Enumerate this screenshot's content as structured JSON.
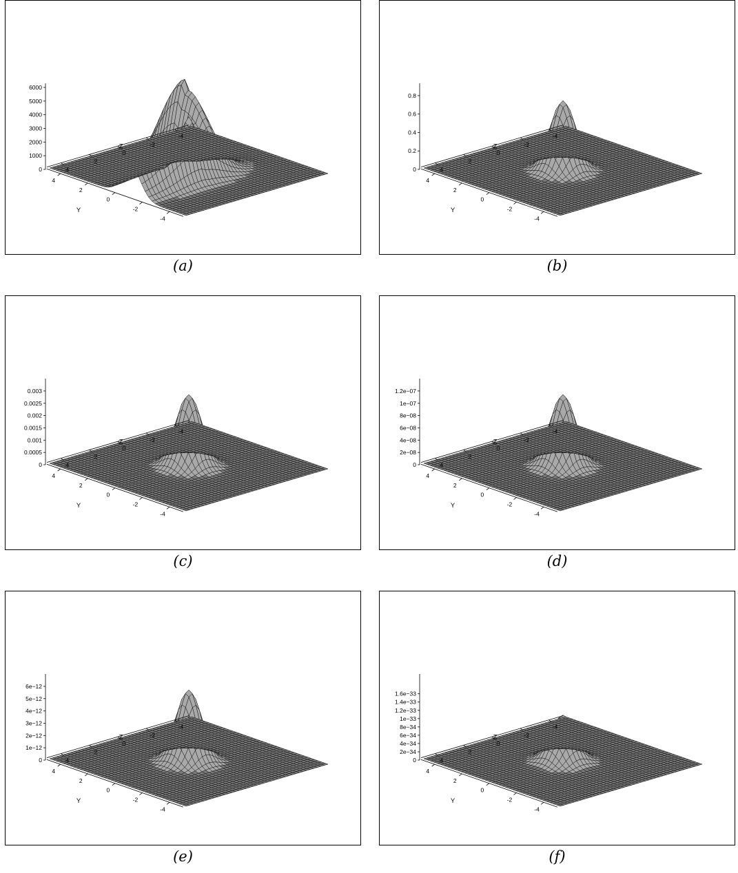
{
  "chart_data": [
    {
      "type": "surface3d",
      "caption": "(a)",
      "x_axis_label": "Y",
      "y_axis_label": "Z",
      "x_ticks": [
        "-4",
        "-2",
        "0",
        "2",
        "4"
      ],
      "y_ticks": [
        "-4",
        "-2",
        "0",
        "2",
        "4"
      ],
      "z_ticks": [
        "6000",
        "5000",
        "4000",
        "3000",
        "2000",
        "1000",
        "0"
      ],
      "zlim": [
        0,
        6000
      ],
      "xlim": [
        -5,
        5
      ],
      "ylim": [
        -5,
        5
      ],
      "surface": "ridge along Z near Y = -1, peak height about 6000 near Z = -1; secondary peak about 3600 near the origin",
      "peak_value": 6000
    },
    {
      "type": "surface3d",
      "caption": "(b)",
      "x_axis_label": "Y",
      "y_axis_label": "Z",
      "x_ticks": [
        "-4",
        "-2",
        "0",
        "2",
        "4"
      ],
      "y_ticks": [
        "-4",
        "-2",
        "0",
        "2",
        "4"
      ],
      "z_ticks": [
        "0.8",
        "0.6",
        "0.4",
        "0.2",
        "0"
      ],
      "zlim": [
        0,
        0.9
      ],
      "xlim": [
        -5,
        5
      ],
      "ylim": [
        -5,
        5
      ],
      "surface": "single peak at origin",
      "peak_value": 0.88
    },
    {
      "type": "surface3d",
      "caption": "(c)",
      "x_axis_label": "Y",
      "y_axis_label": "Z",
      "x_ticks": [
        "-4",
        "-2",
        "0",
        "2",
        "4"
      ],
      "y_ticks": [
        "-4",
        "-2",
        "0",
        "2",
        "4"
      ],
      "z_ticks": [
        "0.003",
        "0.0025",
        "0.002",
        "0.0015",
        "0.001",
        "0.0005",
        "0"
      ],
      "zlim": [
        0,
        0.0032
      ],
      "xlim": [
        -5,
        5
      ],
      "ylim": [
        -5,
        5
      ],
      "surface": "single peak at origin",
      "peak_value": 0.0032
    },
    {
      "type": "surface3d",
      "caption": "(d)",
      "x_axis_label": "Y",
      "y_axis_label": "Z",
      "x_ticks": [
        "-4",
        "-2",
        "0",
        "2",
        "4"
      ],
      "y_ticks": [
        "-4",
        "-2",
        "0",
        "2",
        "4"
      ],
      "z_ticks": [
        "1.2e−07",
        "1e−07",
        "8e−08",
        "6e−08",
        "4e−08",
        "2e−08",
        "0"
      ],
      "zlim": [
        0,
        1.3e-07
      ],
      "xlim": [
        -5,
        5
      ],
      "ylim": [
        -5,
        5
      ],
      "surface": "single peak at origin",
      "peak_value": 1.3e-07
    },
    {
      "type": "surface3d",
      "caption": "(e)",
      "x_axis_label": "Y",
      "y_axis_label": "Z",
      "x_ticks": [
        "-4",
        "-2",
        "0",
        "2",
        "4"
      ],
      "y_ticks": [
        "-4",
        "-2",
        "0",
        "2",
        "4"
      ],
      "z_ticks": [
        "6e−12",
        "5e−12",
        "4e−12",
        "3e−12",
        "2e−12",
        "1e−12",
        "0"
      ],
      "zlim": [
        0,
        6e-12
      ],
      "xlim": [
        -5,
        5
      ],
      "ylim": [
        -5,
        5
      ],
      "surface": "single peak at origin",
      "peak_value": 6e-12
    },
    {
      "type": "surface3d",
      "caption": "(f)",
      "x_axis_label": "Y",
      "y_axis_label": "Z",
      "x_ticks": [
        "-4",
        "-2",
        "0",
        "2",
        "4"
      ],
      "y_ticks": [
        "-4",
        "-2",
        "0",
        "2",
        "4"
      ],
      "z_ticks": [
        "1.6e−33",
        "1.4e−33",
        "1.2e−33",
        "1e−33",
        "8e−34",
        "6e−34",
        "4e−34",
        "2e−34",
        "0"
      ],
      "zlim": [
        0,
        1.7e-33
      ],
      "xlim": [
        -5,
        5
      ],
      "ylim": [
        -5,
        5
      ],
      "surface": "single peak at origin",
      "peak_value": 1.1e-33
    }
  ]
}
